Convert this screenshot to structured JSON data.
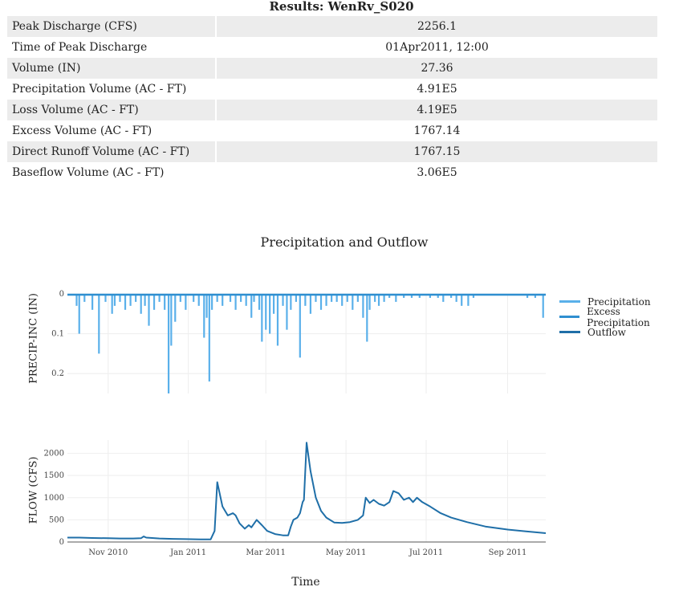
{
  "results": {
    "title": "Results: WenRv_S020",
    "rows": [
      {
        "label": "Peak Discharge (CFS)",
        "value": "2256.1"
      },
      {
        "label": "Time of Peak Discharge",
        "value": "01Apr2011, 12:00"
      },
      {
        "label": "Volume (IN)",
        "value": "27.36"
      },
      {
        "label": "Precipitation Volume (AC - FT)",
        "value": "4.91E5"
      },
      {
        "label": "Loss Volume (AC - FT)",
        "value": "4.19E5"
      },
      {
        "label": "Excess Volume (AC - FT)",
        "value": "1767.14"
      },
      {
        "label": "Direct Runoff Volume (AC - FT)",
        "value": "1767.15"
      },
      {
        "label": "Baseflow Volume (AC - FT)",
        "value": "3.06E5"
      }
    ]
  },
  "chart_data": {
    "type": "line",
    "title": "Precipitation and Outflow",
    "xlabel": "Time",
    "x_ticks": [
      "Nov 2010",
      "Jan 2011",
      "Mar 2011",
      "May 2011",
      "Jul 2011",
      "Sep 2011"
    ],
    "x_range": [
      "2010-10-01",
      "2011-09-30"
    ],
    "legend": [
      "Precipitation",
      "Excess Precipitation",
      "Outflow"
    ],
    "legend_position": "top-right",
    "colors": {
      "precipitation": "#5ab0ea",
      "excess": "#2f8fd0",
      "outflow": "#1f6fa8"
    },
    "precip_panel": {
      "ylabel": "PRECIP-INC (IN)",
      "y_ticks": [
        "0",
        "0.1",
        "0.2"
      ],
      "ylim": [
        0.25,
        0
      ],
      "reversed": true,
      "series": {
        "name": "Precipitation",
        "points": [
          [
            "2010-10-08",
            0.03
          ],
          [
            "2010-10-10",
            0.1
          ],
          [
            "2010-10-14",
            0.02
          ],
          [
            "2010-10-20",
            0.04
          ],
          [
            "2010-10-25",
            0.15
          ],
          [
            "2010-10-30",
            0.02
          ],
          [
            "2010-11-04",
            0.05
          ],
          [
            "2010-11-06",
            0.03
          ],
          [
            "2010-11-10",
            0.02
          ],
          [
            "2010-11-14",
            0.04
          ],
          [
            "2010-11-18",
            0.03
          ],
          [
            "2010-11-22",
            0.02
          ],
          [
            "2010-11-26",
            0.05
          ],
          [
            "2010-11-29",
            0.03
          ],
          [
            "2010-12-02",
            0.08
          ],
          [
            "2010-12-06",
            0.04
          ],
          [
            "2010-12-10",
            0.02
          ],
          [
            "2010-12-14",
            0.04
          ],
          [
            "2010-12-17",
            0.25
          ],
          [
            "2010-12-19",
            0.13
          ],
          [
            "2010-12-22",
            0.07
          ],
          [
            "2010-12-26",
            0.02
          ],
          [
            "2010-12-30",
            0.04
          ],
          [
            "2011-01-05",
            0.02
          ],
          [
            "2011-01-09",
            0.03
          ],
          [
            "2011-01-13",
            0.11
          ],
          [
            "2011-01-15",
            0.06
          ],
          [
            "2011-01-17",
            0.22
          ],
          [
            "2011-01-19",
            0.04
          ],
          [
            "2011-01-23",
            0.02
          ],
          [
            "2011-01-27",
            0.03
          ],
          [
            "2011-02-02",
            0.02
          ],
          [
            "2011-02-06",
            0.04
          ],
          [
            "2011-02-10",
            0.02
          ],
          [
            "2011-02-14",
            0.03
          ],
          [
            "2011-02-18",
            0.06
          ],
          [
            "2011-02-20",
            0.02
          ],
          [
            "2011-02-24",
            0.04
          ],
          [
            "2011-02-26",
            0.12
          ],
          [
            "2011-03-01",
            0.09
          ],
          [
            "2011-03-04",
            0.1
          ],
          [
            "2011-03-07",
            0.05
          ],
          [
            "2011-03-10",
            0.13
          ],
          [
            "2011-03-14",
            0.03
          ],
          [
            "2011-03-17",
            0.09
          ],
          [
            "2011-03-20",
            0.04
          ],
          [
            "2011-03-24",
            0.02
          ],
          [
            "2011-03-27",
            0.16
          ],
          [
            "2011-03-31",
            0.03
          ],
          [
            "2011-04-04",
            0.05
          ],
          [
            "2011-04-08",
            0.02
          ],
          [
            "2011-04-12",
            0.04
          ],
          [
            "2011-04-16",
            0.03
          ],
          [
            "2011-04-20",
            0.02
          ],
          [
            "2011-04-24",
            0.02
          ],
          [
            "2011-04-28",
            0.03
          ],
          [
            "2011-05-02",
            0.02
          ],
          [
            "2011-05-06",
            0.04
          ],
          [
            "2011-05-10",
            0.02
          ],
          [
            "2011-05-14",
            0.06
          ],
          [
            "2011-05-17",
            0.12
          ],
          [
            "2011-05-19",
            0.04
          ],
          [
            "2011-05-23",
            0.02
          ],
          [
            "2011-05-26",
            0.03
          ],
          [
            "2011-05-30",
            0.02
          ],
          [
            "2011-06-03",
            0.01
          ],
          [
            "2011-06-08",
            0.02
          ],
          [
            "2011-06-14",
            0.01
          ],
          [
            "2011-06-20",
            0.01
          ],
          [
            "2011-06-26",
            0.01
          ],
          [
            "2011-07-04",
            0.01
          ],
          [
            "2011-07-10",
            0.01
          ],
          [
            "2011-07-14",
            0.02
          ],
          [
            "2011-07-20",
            0.01
          ],
          [
            "2011-07-24",
            0.02
          ],
          [
            "2011-07-28",
            0.03
          ],
          [
            "2011-08-02",
            0.03
          ],
          [
            "2011-08-06",
            0.01
          ],
          [
            "2011-09-16",
            0.01
          ],
          [
            "2011-09-22",
            0.01
          ],
          [
            "2011-09-28",
            0.06
          ]
        ]
      }
    },
    "flow_panel": {
      "ylabel": "FLOW (CFS)",
      "y_ticks": [
        "0",
        "500",
        "1000",
        "1500",
        "2000"
      ],
      "ylim": [
        0,
        2300
      ],
      "series": {
        "name": "Outflow",
        "points": [
          [
            "2010-10-01",
            100
          ],
          [
            "2010-10-10",
            100
          ],
          [
            "2010-10-20",
            90
          ],
          [
            "2010-11-01",
            85
          ],
          [
            "2010-11-10",
            80
          ],
          [
            "2010-11-20",
            80
          ],
          [
            "2010-11-26",
            85
          ],
          [
            "2010-11-28",
            125
          ],
          [
            "2010-11-30",
            100
          ],
          [
            "2010-12-10",
            80
          ],
          [
            "2010-12-20",
            70
          ],
          [
            "2010-12-30",
            65
          ],
          [
            "2011-01-10",
            60
          ],
          [
            "2011-01-18",
            60
          ],
          [
            "2011-01-21",
            250
          ],
          [
            "2011-01-23",
            1350
          ],
          [
            "2011-01-27",
            800
          ],
          [
            "2011-01-31",
            600
          ],
          [
            "2011-02-04",
            650
          ],
          [
            "2011-02-06",
            600
          ],
          [
            "2011-02-09",
            420
          ],
          [
            "2011-02-13",
            300
          ],
          [
            "2011-02-16",
            380
          ],
          [
            "2011-02-18",
            330
          ],
          [
            "2011-02-22",
            500
          ],
          [
            "2011-02-26",
            380
          ],
          [
            "2011-03-02",
            250
          ],
          [
            "2011-03-08",
            180
          ],
          [
            "2011-03-14",
            150
          ],
          [
            "2011-03-18",
            150
          ],
          [
            "2011-03-20",
            350
          ],
          [
            "2011-03-22",
            500
          ],
          [
            "2011-03-25",
            550
          ],
          [
            "2011-03-27",
            650
          ],
          [
            "2011-03-29",
            900
          ],
          [
            "2011-03-30",
            950
          ],
          [
            "2011-04-01",
            2240
          ],
          [
            "2011-04-04",
            1600
          ],
          [
            "2011-04-08",
            1000
          ],
          [
            "2011-04-12",
            700
          ],
          [
            "2011-04-16",
            550
          ],
          [
            "2011-04-22",
            440
          ],
          [
            "2011-04-28",
            430
          ],
          [
            "2011-05-04",
            450
          ],
          [
            "2011-05-10",
            500
          ],
          [
            "2011-05-14",
            600
          ],
          [
            "2011-05-16",
            1000
          ],
          [
            "2011-05-19",
            880
          ],
          [
            "2011-05-22",
            950
          ],
          [
            "2011-05-26",
            860
          ],
          [
            "2011-05-30",
            820
          ],
          [
            "2011-06-03",
            900
          ],
          [
            "2011-06-06",
            1150
          ],
          [
            "2011-06-10",
            1100
          ],
          [
            "2011-06-14",
            950
          ],
          [
            "2011-06-18",
            1000
          ],
          [
            "2011-06-21",
            900
          ],
          [
            "2011-06-24",
            1000
          ],
          [
            "2011-06-28",
            900
          ],
          [
            "2011-07-04",
            800
          ],
          [
            "2011-07-12",
            650
          ],
          [
            "2011-07-20",
            550
          ],
          [
            "2011-08-01",
            450
          ],
          [
            "2011-08-15",
            350
          ],
          [
            "2011-09-01",
            280
          ],
          [
            "2011-09-15",
            240
          ],
          [
            "2011-09-30",
            200
          ]
        ]
      }
    }
  }
}
